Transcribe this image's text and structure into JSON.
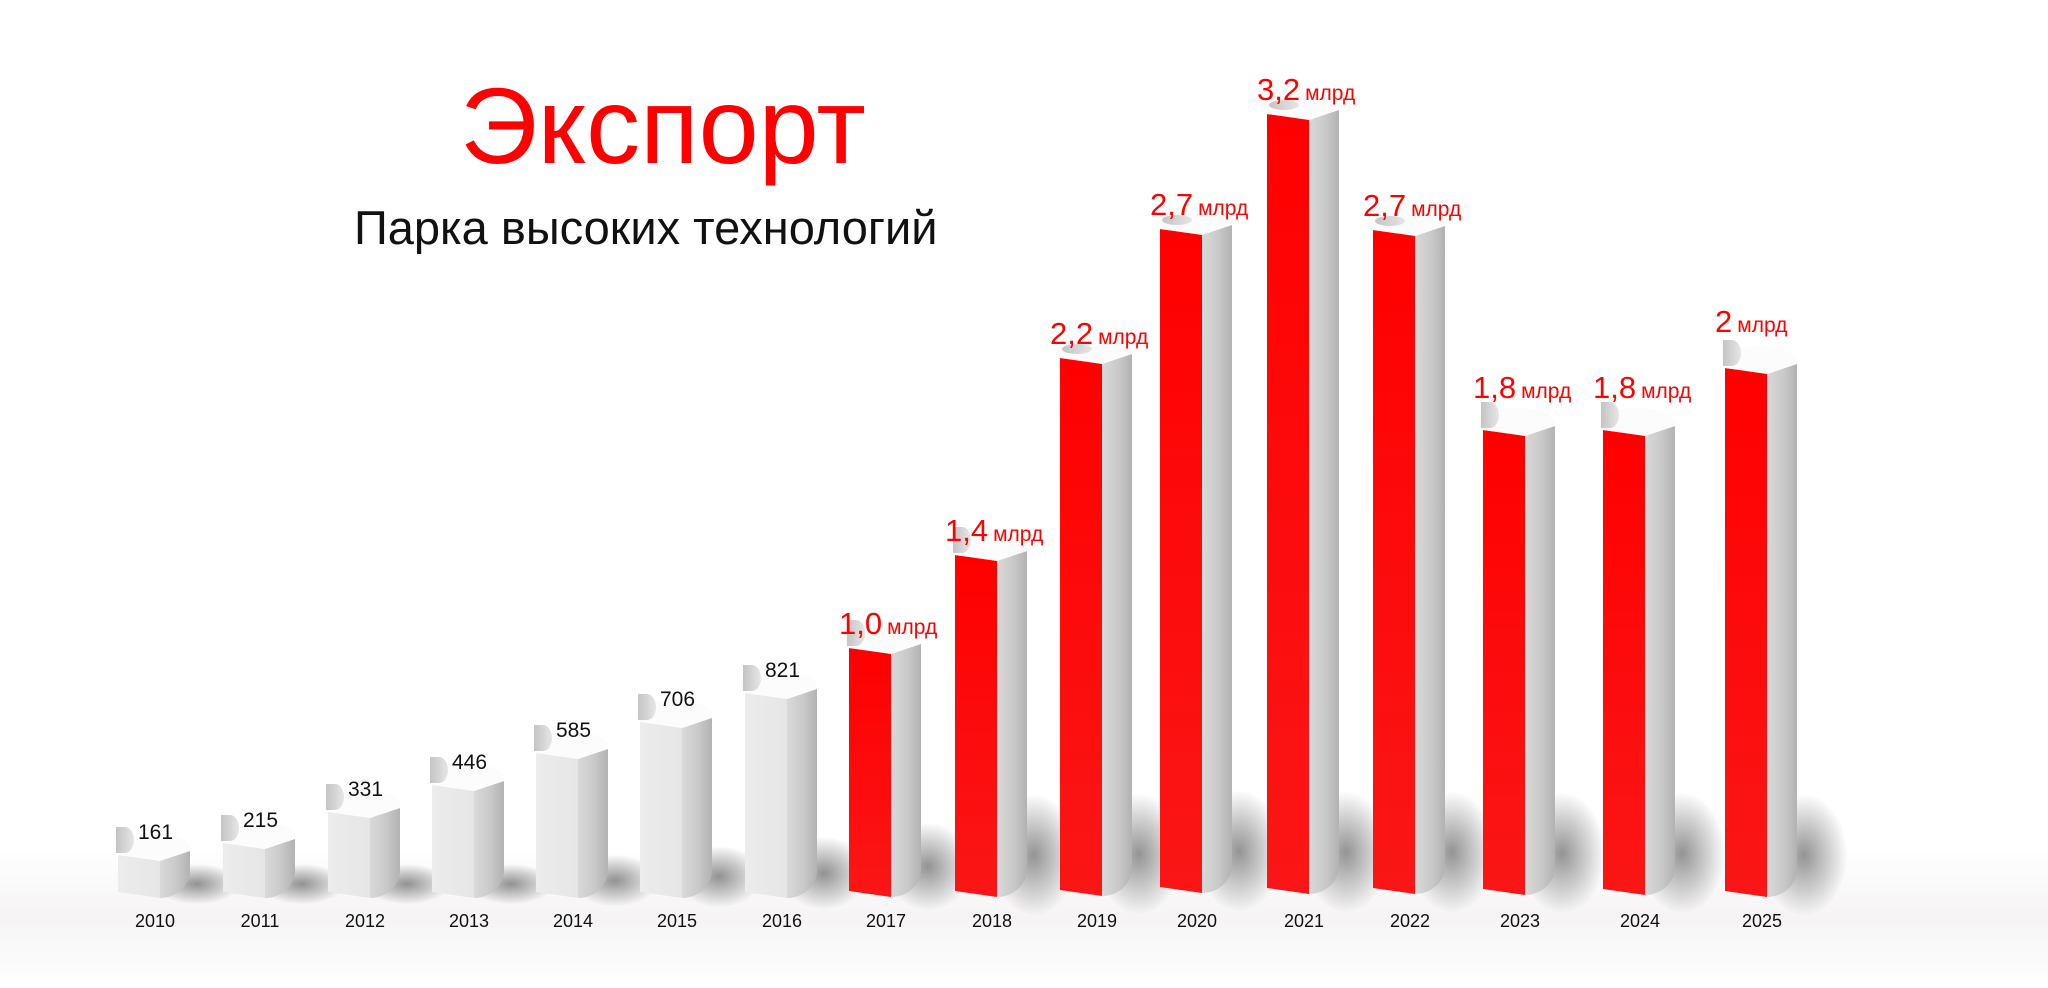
{
  "header": {
    "title": "Экспорт",
    "subtitle": "Парка высоких технологий"
  },
  "colors": {
    "highlight": "#ff0000",
    "base_bar": "#ebebeb",
    "side_bar": "#c8c8c8",
    "text": "#111111"
  },
  "bars": [
    {
      "year": "2010",
      "label": "161",
      "unit": "",
      "highlight": false
    },
    {
      "year": "2011",
      "label": "215",
      "unit": "",
      "highlight": false
    },
    {
      "year": "2012",
      "label": "331",
      "unit": "",
      "highlight": false
    },
    {
      "year": "2013",
      "label": "446",
      "unit": "",
      "highlight": false
    },
    {
      "year": "2014",
      "label": "585",
      "unit": "",
      "highlight": false
    },
    {
      "year": "2015",
      "label": "706",
      "unit": "",
      "highlight": false
    },
    {
      "year": "2016",
      "label": "821",
      "unit": "",
      "highlight": false
    },
    {
      "year": "2017",
      "label": "1,0",
      "unit": "млрд",
      "highlight": true
    },
    {
      "year": "2018",
      "label": "1,4",
      "unit": "млрд",
      "highlight": true
    },
    {
      "year": "2019",
      "label": "2,2",
      "unit": "млрд",
      "highlight": true
    },
    {
      "year": "2020",
      "label": "2,7",
      "unit": "млрд",
      "highlight": true
    },
    {
      "year": "2021",
      "label": "3,2",
      "unit": "млрд",
      "highlight": true
    },
    {
      "year": "2022",
      "label": "2,7",
      "unit": "млрд",
      "highlight": true
    },
    {
      "year": "2023",
      "label": "1,8",
      "unit": "млрд",
      "highlight": true
    },
    {
      "year": "2024",
      "label": "1,8",
      "unit": "млрд",
      "highlight": true
    },
    {
      "year": "2025",
      "label": "2",
      "unit": "млрд",
      "highlight": true
    }
  ],
  "chart_data": {
    "type": "bar",
    "title": "Экспорт",
    "subtitle": "Парка высоких технологий",
    "xlabel": "",
    "ylabel": "",
    "categories": [
      "2010",
      "2011",
      "2012",
      "2013",
      "2014",
      "2015",
      "2016",
      "2017",
      "2018",
      "2019",
      "2020",
      "2021",
      "2022",
      "2023",
      "2024",
      "2025"
    ],
    "series": [
      {
        "name": "Экспорт",
        "values": [
          161,
          215,
          331,
          446,
          585,
          706,
          821,
          1000,
          1400,
          2200,
          2700,
          3200,
          2700,
          1800,
          1800,
          2000
        ],
        "data_labels": [
          "161",
          "215",
          "331",
          "446",
          "585",
          "706",
          "821",
          "1,0 млрд",
          "1,4 млрд",
          "2,2 млрд",
          "2,7 млрд",
          "3,2 млрд",
          "2,7 млрд",
          "1,8 млрд",
          "1,8 млрд",
          "2 млрд"
        ]
      }
    ],
    "units_note": "Values 2010–2016 shown without unit; 2017–2025 labeled in млрд (billions)",
    "highlighted_categories": [
      "2017",
      "2018",
      "2019",
      "2020",
      "2021",
      "2022",
      "2023",
      "2024",
      "2025"
    ],
    "grid": false,
    "legend": "none",
    "style": "3D cylindrical-edge bars; grey for 2010–2016, red for 2017–2025"
  }
}
